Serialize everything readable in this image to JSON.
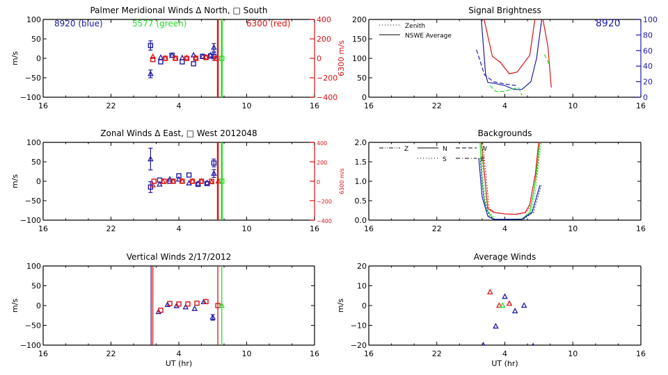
{
  "colors": {
    "blue": "#1a1aa6",
    "green": "#22dd22",
    "red": "#dd1111",
    "axis": "#000000"
  },
  "chart_data": [
    {
      "id": "meridional",
      "type": "scatter",
      "title": "Palmer Meridional Winds Δ North, □ South",
      "xlabel": "",
      "ylabel": "m/s",
      "ylabel_right": "6300 m/s",
      "xlim": [
        16,
        40
      ],
      "ylim": [
        -100,
        100
      ],
      "ylim_right": [
        -400,
        400
      ],
      "xticks": [
        "16",
        "22",
        "4",
        "10",
        "16"
      ],
      "yticks": [
        "-100",
        "-50",
        "0",
        "50",
        "100"
      ],
      "yticks_right": [
        "-400",
        "-200",
        "0",
        "200",
        "400"
      ],
      "annotations": [
        {
          "text": "8920 (blue)",
          "color": "blue"
        },
        {
          "text": "5577 (green)",
          "color": "green"
        },
        {
          "text": "6300 (red)",
          "color": "red"
        }
      ],
      "vlines": [
        {
          "x": 31.45,
          "color": "red"
        },
        {
          "x": 31.8,
          "color": "green"
        }
      ],
      "series": [
        {
          "name": "8920 North",
          "color": "blue",
          "marker": "triangle",
          "points": [
            [
              25.5,
              -40,
              10
            ],
            [
              26.4,
              2,
              0
            ],
            [
              27.4,
              7,
              0
            ],
            [
              28.3,
              1,
              0
            ],
            [
              29.3,
              8,
              0
            ],
            [
              30.1,
              5,
              0
            ],
            [
              30.8,
              8,
              0
            ],
            [
              31.1,
              28,
              10
            ]
          ]
        },
        {
          "name": "8920 South",
          "color": "blue",
          "marker": "square",
          "points": [
            [
              25.5,
              33,
              12
            ],
            [
              26.4,
              -9,
              0
            ],
            [
              27.4,
              8,
              0
            ],
            [
              28.3,
              -9,
              0
            ],
            [
              29.3,
              -14,
              0
            ],
            [
              30.1,
              5,
              0
            ],
            [
              30.8,
              6,
              0
            ],
            [
              31.1,
              5,
              10
            ]
          ]
        },
        {
          "name": "6300 North",
          "color": "red",
          "marker": "triangle",
          "points": [
            [
              25.7,
              4,
              0
            ],
            [
              26.8,
              0,
              0
            ],
            [
              27.7,
              0,
              0
            ],
            [
              28.7,
              1,
              0
            ],
            [
              29.5,
              1,
              0
            ],
            [
              30.4,
              3,
              0
            ],
            [
              31.3,
              0,
              0
            ]
          ]
        },
        {
          "name": "6300 South",
          "color": "red",
          "marker": "square",
          "points": [
            [
              25.7,
              -3,
              0
            ],
            [
              26.8,
              0,
              0
            ],
            [
              27.7,
              0,
              0
            ],
            [
              28.7,
              0,
              0
            ],
            [
              29.5,
              0,
              0
            ],
            [
              30.4,
              2,
              0
            ],
            [
              31.3,
              0,
              0
            ]
          ]
        },
        {
          "name": "5577",
          "color": "green",
          "marker": "square",
          "points": [
            [
              31.8,
              0,
              0
            ]
          ]
        }
      ]
    },
    {
      "id": "brightness",
      "type": "line",
      "title": "Signal Brightness",
      "xlim": [
        16,
        40
      ],
      "ylim": [
        0,
        200
      ],
      "ylim_right": [
        0,
        100
      ],
      "ylabel": "",
      "xticks": [
        "16",
        "22",
        "4",
        "10",
        "16"
      ],
      "yticks": [
        "0",
        "50",
        "100",
        "150",
        "200"
      ],
      "yticks_right": [
        "0",
        "20",
        "40",
        "60",
        "80",
        "100"
      ],
      "legend": [
        {
          "label": "Zenith",
          "style": "dotted"
        },
        {
          "label": "NSWE Average",
          "style": "solid"
        }
      ],
      "legend_position": "top-left",
      "annotation": {
        "text": "8920",
        "color": "blue"
      },
      "series": [
        {
          "name": "6300 NSWE",
          "color": "red",
          "style": "solid",
          "points": [
            [
              26.1,
              210
            ],
            [
              26.9,
              105
            ],
            [
              27.6,
              90
            ],
            [
              28.4,
              60
            ],
            [
              29.1,
              65
            ],
            [
              30.2,
              108
            ],
            [
              30.7,
              210
            ]
          ]
        },
        {
          "name": "6300 descend",
          "color": "red",
          "style": "solid",
          "points": [
            [
              31.3,
              210
            ],
            [
              31.8,
              130
            ],
            [
              32.1,
              25
            ]
          ]
        },
        {
          "name": "8920 NSWE",
          "color": "blue",
          "style": "solid",
          "points": [
            [
              25.9,
              210
            ],
            [
              26.3,
              60
            ],
            [
              26.5,
              38
            ],
            [
              27.0,
              36
            ],
            [
              28.0,
              30
            ],
            [
              28.8,
              20
            ],
            [
              29.5,
              20
            ],
            [
              30.3,
              40
            ],
            [
              30.8,
              100
            ],
            [
              31.3,
              210
            ]
          ]
        },
        {
          "name": "8920 Zenith",
          "color": "blue",
          "style": "dashed",
          "points": [
            [
              25.5,
              122
            ],
            [
              26.2,
              58
            ],
            [
              27.0,
              40
            ],
            [
              28.0,
              34
            ],
            [
              29.0,
              30
            ]
          ]
        },
        {
          "name": "5577",
          "color": "green",
          "style": "dashed",
          "points": [
            [
              26.7,
              30
            ],
            [
              27.2,
              15
            ],
            [
              28.0,
              15
            ],
            [
              28.8,
              22
            ],
            [
              29.2,
              25
            ],
            [
              29.5,
              5
            ]
          ]
        },
        {
          "name": "5577 tail",
          "color": "green",
          "style": "dashed",
          "points": [
            [
              31.5,
              110
            ],
            [
              32.0,
              80
            ]
          ]
        }
      ]
    },
    {
      "id": "zonal",
      "type": "scatter",
      "title": "Zonal Winds Δ East, □ West 2012048",
      "ylabel": "m/s",
      "ylabel_right": "6300 m/s",
      "xlim": [
        16,
        40
      ],
      "ylim": [
        -100,
        100
      ],
      "ylim_right": [
        -400,
        400
      ],
      "xticks": [
        "16",
        "22",
        "4",
        "10",
        "16"
      ],
      "yticks": [
        "-100",
        "-50",
        "0",
        "50",
        "100"
      ],
      "yticks_right": [
        "-400",
        "-200",
        "0",
        "200",
        "400"
      ],
      "vlines": [
        {
          "x": 31.45,
          "color": "red"
        },
        {
          "x": 31.8,
          "color": "green"
        }
      ],
      "series": [
        {
          "name": "8920 East",
          "color": "blue",
          "marker": "triangle",
          "points": [
            [
              25.5,
              57,
              28
            ],
            [
              26.3,
              -8,
              0
            ],
            [
              27.2,
              5,
              0
            ],
            [
              28.0,
              5,
              0
            ],
            [
              28.9,
              -5,
              0
            ],
            [
              29.7,
              -6,
              0
            ],
            [
              30.5,
              -4,
              0
            ],
            [
              31.1,
              20,
              10
            ]
          ]
        },
        {
          "name": "8920 West",
          "color": "blue",
          "marker": "square",
          "points": [
            [
              25.5,
              -15,
              14
            ],
            [
              26.3,
              3,
              0
            ],
            [
              27.2,
              0,
              0
            ],
            [
              28.0,
              14,
              0
            ],
            [
              28.9,
              16,
              0
            ],
            [
              29.7,
              -8,
              0
            ],
            [
              30.5,
              -6,
              0
            ],
            [
              31.1,
              47,
              10
            ]
          ]
        },
        {
          "name": "6300 East",
          "color": "red",
          "marker": "triangle",
          "points": [
            [
              25.7,
              -10,
              0
            ],
            [
              26.6,
              -1,
              0
            ],
            [
              27.5,
              0,
              0
            ],
            [
              28.3,
              0,
              0
            ],
            [
              29.2,
              0,
              0
            ],
            [
              30.0,
              0,
              0
            ],
            [
              30.9,
              -2,
              0
            ],
            [
              31.5,
              0,
              0
            ]
          ]
        },
        {
          "name": "6300 West",
          "color": "red",
          "marker": "square",
          "points": [
            [
              25.8,
              0,
              0
            ],
            [
              26.7,
              0,
              0
            ],
            [
              27.5,
              0,
              0
            ],
            [
              28.3,
              0,
              0
            ],
            [
              29.2,
              0,
              0
            ],
            [
              30.0,
              0,
              0
            ],
            [
              30.9,
              0,
              0
            ]
          ]
        },
        {
          "name": "5577",
          "color": "green",
          "marker": "square",
          "points": [
            [
              31.8,
              0,
              0
            ]
          ]
        }
      ]
    },
    {
      "id": "backgrounds",
      "type": "line",
      "title": "Backgrounds",
      "xlim": [
        16,
        40
      ],
      "ylim": [
        0,
        2.0
      ],
      "xticks": [
        "16",
        "22",
        "4",
        "10",
        "16"
      ],
      "yticks": [
        "0.0",
        "0.5",
        "1.0",
        "1.5",
        "2.0"
      ],
      "legend": [
        {
          "label": "Z",
          "style": "dashdotdot"
        },
        {
          "label": "N",
          "style": "solid"
        },
        {
          "label": "W",
          "style": "dashed"
        },
        {
          "label": "S",
          "style": "dotted"
        },
        {
          "label": "E",
          "style": "dashdot"
        }
      ],
      "legend_position": "top-left",
      "series": [
        {
          "name": "6300",
          "color": "red",
          "style": "solid",
          "points": [
            [
              25.9,
              2.05
            ],
            [
              26.2,
              1.2
            ],
            [
              26.5,
              0.3
            ],
            [
              27.0,
              0.2
            ],
            [
              28.0,
              0.16
            ],
            [
              29.0,
              0.15
            ],
            [
              29.8,
              0.2
            ],
            [
              30.2,
              0.4
            ],
            [
              30.7,
              1.2
            ],
            [
              31.0,
              2.05
            ]
          ]
        },
        {
          "name": "5577",
          "color": "green",
          "style": "solid",
          "points": [
            [
              25.8,
              2.05
            ],
            [
              26.0,
              1.0
            ],
            [
              26.3,
              0.3
            ],
            [
              27.0,
              0.02
            ],
            [
              28.0,
              0.02
            ],
            [
              29.5,
              0.03
            ],
            [
              30.2,
              0.2
            ],
            [
              30.6,
              0.8
            ],
            [
              31.1,
              2.05
            ]
          ]
        },
        {
          "name": "8920",
          "color": "blue",
          "style": "solid",
          "points": [
            [
              25.7,
              1.6
            ],
            [
              26.0,
              0.6
            ],
            [
              26.5,
              0.1
            ],
            [
              27.0,
              0.02
            ],
            [
              29.5,
              0.02
            ],
            [
              30.4,
              0.2
            ],
            [
              30.8,
              0.6
            ],
            [
              31.1,
              0.9
            ]
          ]
        }
      ]
    },
    {
      "id": "vertical",
      "type": "scatter",
      "title": "Vertical Winds 2/17/2012",
      "xlabel": "UT (hr)",
      "ylabel": "m/s",
      "xlim": [
        16,
        40
      ],
      "ylim": [
        -100,
        100
      ],
      "xticks": [
        "16",
        "22",
        "4",
        "10",
        "16"
      ],
      "yticks": [
        "-100",
        "-50",
        "0",
        "50",
        "100"
      ],
      "vlines": [
        {
          "x": 25.55,
          "color": "blue"
        },
        {
          "x": 25.7,
          "color": "red"
        },
        {
          "x": 31.45,
          "color": "red"
        },
        {
          "x": 31.8,
          "color": "green"
        }
      ],
      "series": [
        {
          "name": "8920",
          "color": "blue",
          "marker": "triangle",
          "points": [
            [
              26.2,
              -16,
              0
            ],
            [
              27.0,
              2,
              0
            ],
            [
              27.8,
              -1,
              0
            ],
            [
              28.6,
              -4,
              0
            ],
            [
              29.4,
              -8,
              0
            ],
            [
              30.2,
              9,
              0
            ],
            [
              31.0,
              -30,
              7
            ]
          ]
        },
        {
          "name": "6300",
          "color": "red",
          "marker": "square",
          "points": [
            [
              26.4,
              -12,
              0
            ],
            [
              27.2,
              5,
              0
            ],
            [
              28.0,
              4,
              0
            ],
            [
              28.8,
              4,
              0
            ],
            [
              29.6,
              6,
              0
            ],
            [
              30.4,
              10,
              0
            ],
            [
              31.45,
              0,
              0
            ]
          ]
        },
        {
          "name": "5577",
          "color": "green",
          "marker": "triangle",
          "points": [
            [
              31.8,
              0,
              0
            ]
          ]
        }
      ]
    },
    {
      "id": "average",
      "type": "scatter",
      "title": "Average Winds",
      "xlabel": "UT (hr)",
      "ylabel": "m/s",
      "xlim": [
        16,
        40
      ],
      "ylim": [
        -20,
        20
      ],
      "xticks": [
        "16",
        "22",
        "4",
        "10",
        "16"
      ],
      "yticks": [
        "-20",
        "-10",
        "0",
        "10",
        "20"
      ],
      "series": [
        {
          "name": "8920",
          "color": "blue",
          "marker": "triangle",
          "points": [
            [
              26.1,
              -20
            ],
            [
              27.2,
              -10.5
            ],
            [
              28.0,
              4.5
            ],
            [
              28.9,
              -2.8
            ],
            [
              29.7,
              0
            ],
            [
              30.5,
              -20.5
            ]
          ]
        },
        {
          "name": "6300",
          "color": "red",
          "marker": "triangle",
          "points": [
            [
              26.7,
              6.8
            ],
            [
              27.5,
              0
            ],
            [
              28.4,
              1
            ]
          ]
        },
        {
          "name": "5577",
          "color": "green",
          "marker": "triangle",
          "points": [
            [
              27.8,
              0
            ]
          ]
        }
      ]
    }
  ]
}
